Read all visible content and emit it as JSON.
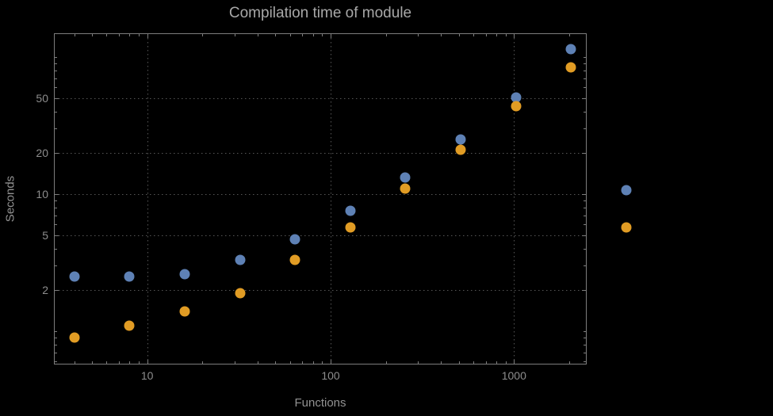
{
  "chart_data": {
    "type": "scatter",
    "title": "Compilation time of module",
    "xlabel": "Functions",
    "ylabel": "Seconds",
    "x_scale": "log",
    "y_scale": "log",
    "xlim": [
      3.1,
      2490
    ],
    "ylim": [
      0.57,
      149
    ],
    "x_ticks": [
      10,
      100,
      1000
    ],
    "y_ticks": [
      2,
      5,
      10,
      20,
      50
    ],
    "x_gridlines": [
      10,
      100,
      1000
    ],
    "y_gridlines": [
      2,
      5,
      10,
      20,
      50
    ],
    "grid_style": "dotted",
    "legend_position": "right-of-plot",
    "x": [
      4,
      8,
      16,
      32,
      64,
      128,
      256,
      512,
      1024,
      2048
    ],
    "series": [
      {
        "name": "series-blue",
        "color": "#5e81b5",
        "values": [
          2.5,
          2.5,
          2.6,
          3.3,
          4.7,
          7.6,
          13.2,
          25,
          51,
          114
        ]
      },
      {
        "name": "series-orange",
        "color": "#e19c24",
        "values": [
          0.9,
          1.1,
          1.4,
          1.9,
          3.3,
          5.7,
          10.9,
          21,
          44,
          84
        ]
      }
    ],
    "legend": {
      "marker_colors": [
        "#5e81b5",
        "#e19c24"
      ],
      "labels_visible": false
    }
  },
  "colors": {
    "background": "#000000",
    "frame": "#7d7d7d",
    "gridline": "#565656",
    "title_text": "#a8a8a8",
    "axis_label_text": "#929292",
    "tick_label_text": "#8d8d8d"
  }
}
